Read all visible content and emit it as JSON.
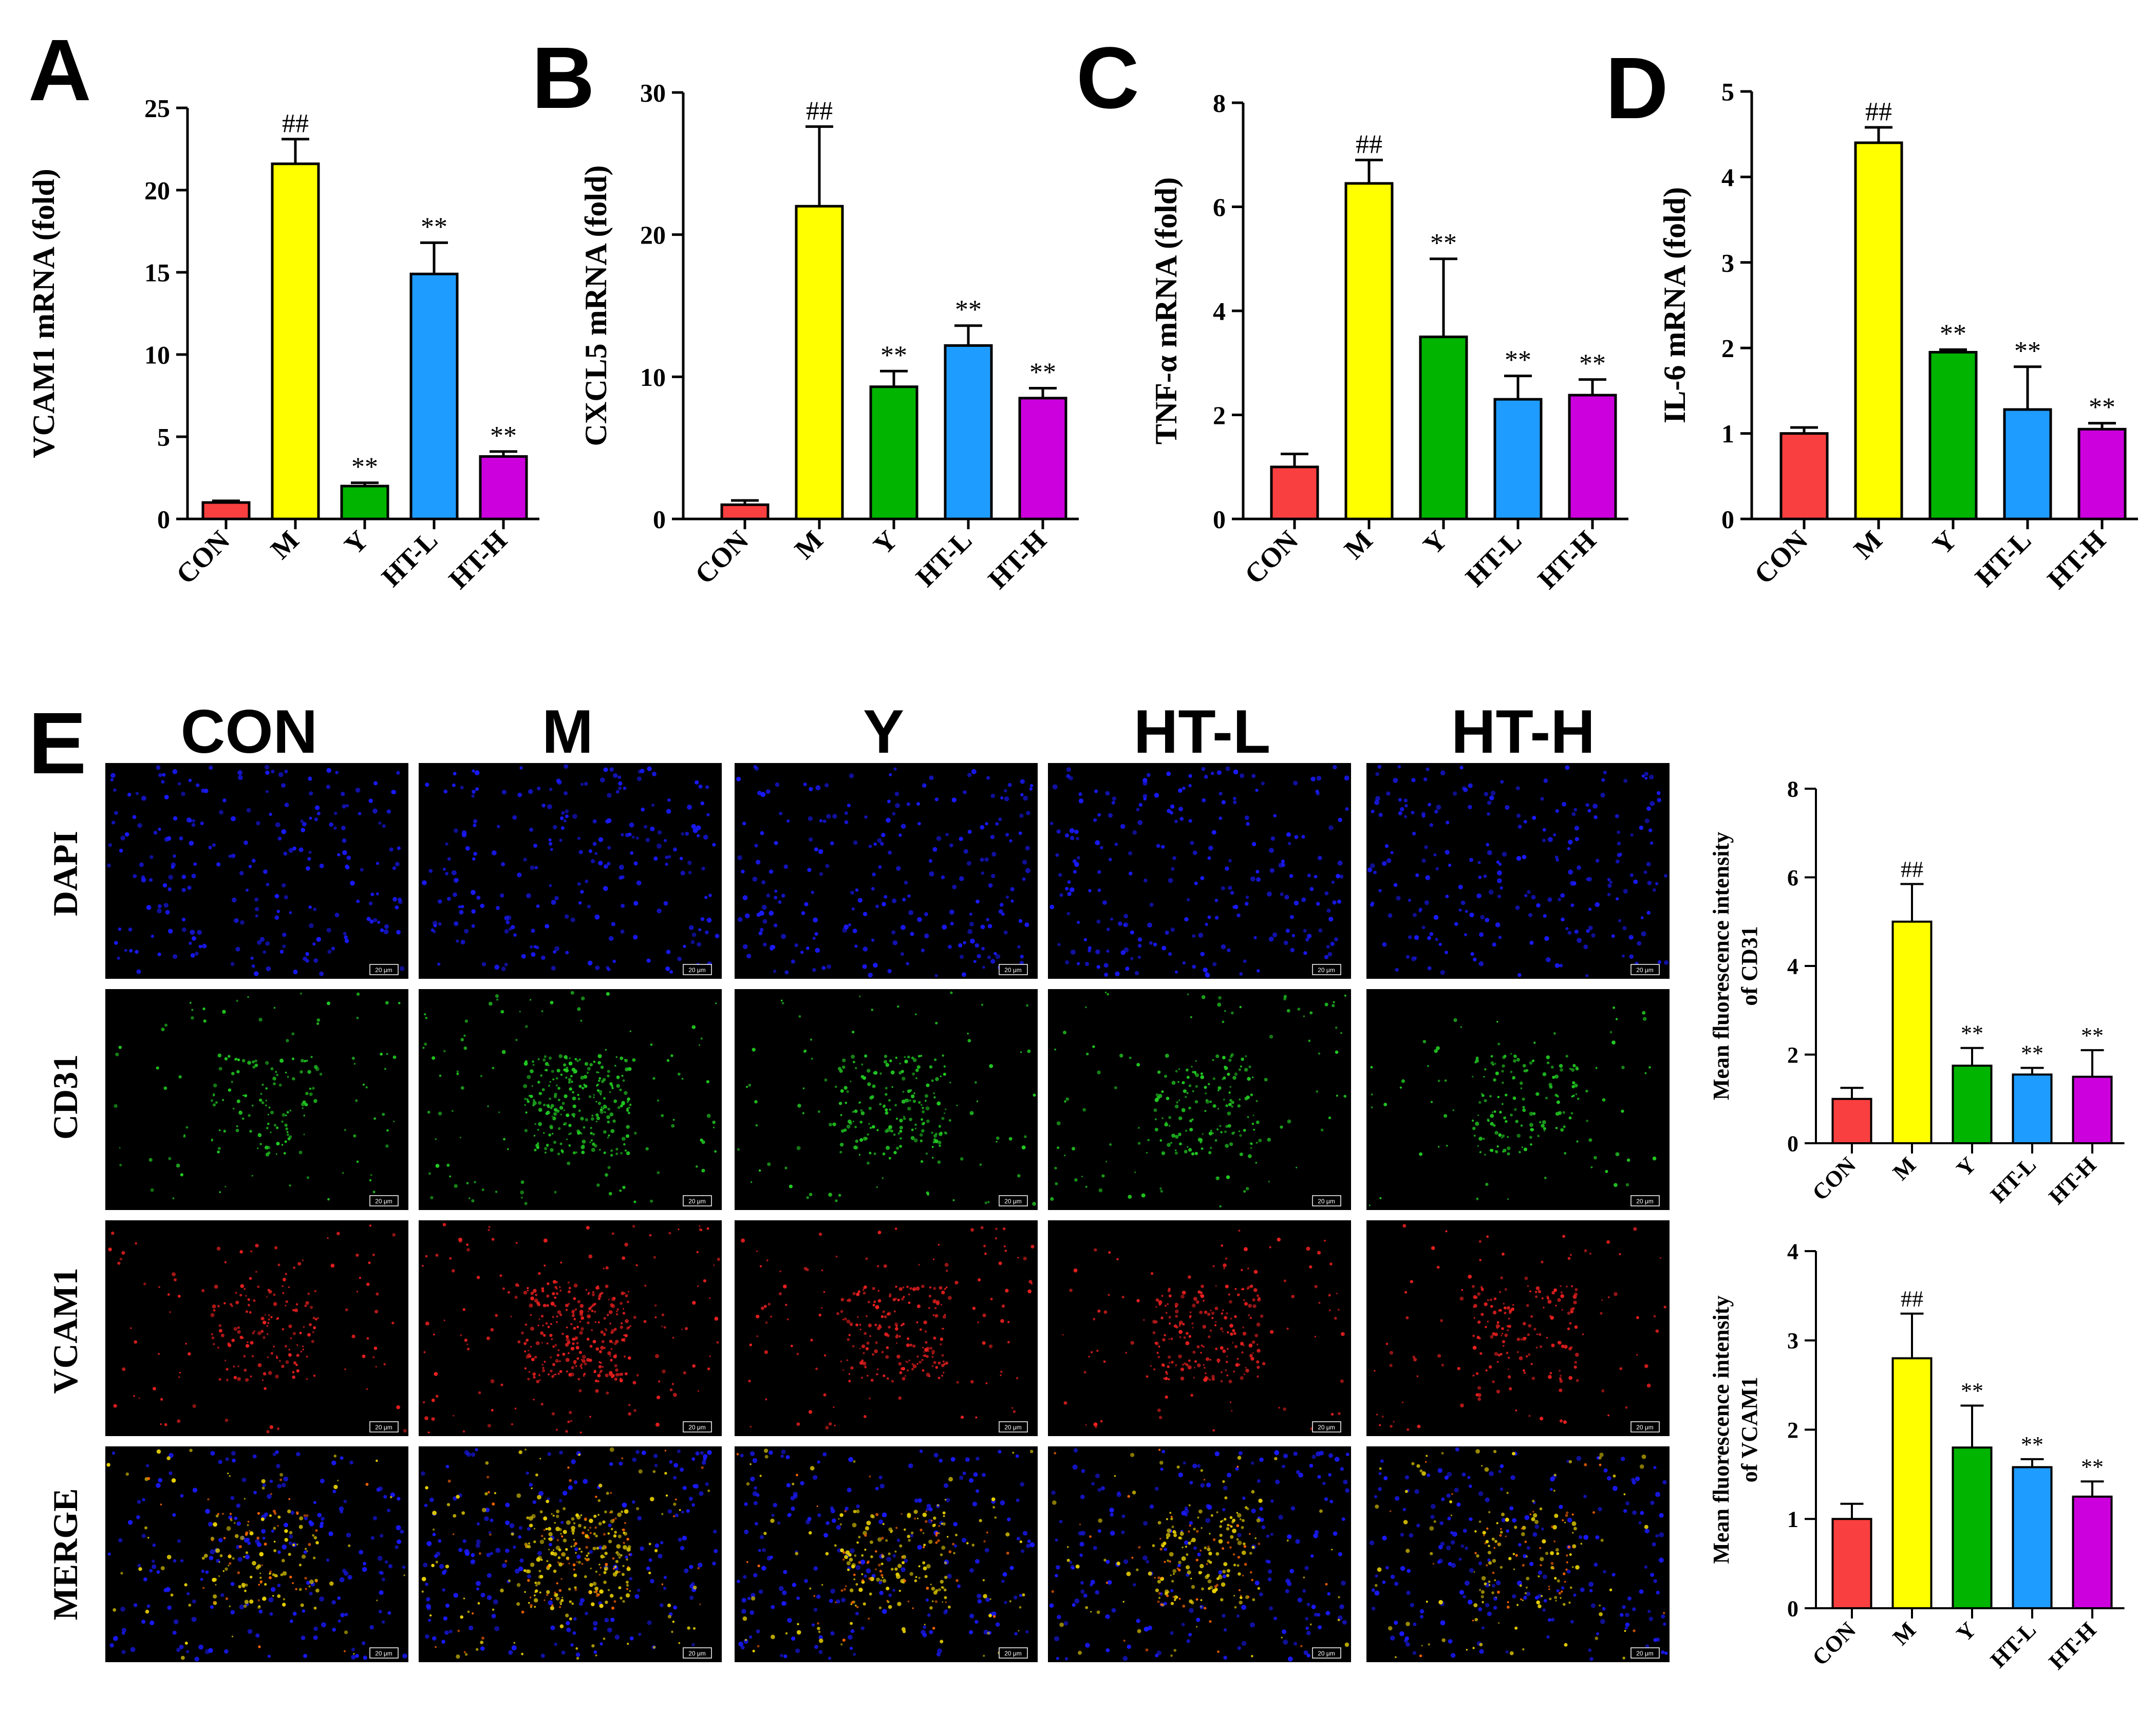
{
  "figure": {
    "panel_labels": [
      "A",
      "B",
      "C",
      "D",
      "E"
    ],
    "colors": {
      "CON": "#f93f3f",
      "M": "#ffff00",
      "Y": "#00b400",
      "HT-L": "#1e9cff",
      "HT-H": "#cc00dd"
    },
    "image_grid": {
      "column_headers": [
        "CON",
        "M",
        "Y",
        "HT-L",
        "HT-H"
      ],
      "row_labels": [
        "DAPI",
        "CD31",
        "VCAM1",
        "MERGE"
      ],
      "scale_bar_text": "20 μm"
    }
  },
  "chart_data": [
    {
      "id": "A",
      "type": "bar",
      "categories": [
        "CON",
        "M",
        "Y",
        "HT-L",
        "HT-H"
      ],
      "values": [
        1.0,
        21.6,
        2.0,
        14.9,
        3.8
      ],
      "errors": [
        0.1,
        1.5,
        0.2,
        1.9,
        0.3
      ],
      "annotations": [
        "",
        "##",
        "**",
        "**",
        "**"
      ],
      "ylabel": "VCAM1 mRNA (fold)",
      "ylim": [
        0,
        25
      ],
      "yticks": [
        0,
        5,
        10,
        15,
        20,
        25
      ],
      "ytick_labels": [
        "0",
        "5",
        "10",
        "15",
        "20",
        "25"
      ]
    },
    {
      "id": "B",
      "type": "bar",
      "categories": [
        "CON",
        "M",
        "Y",
        "HT-L",
        "HT-H"
      ],
      "values": [
        1.0,
        22.0,
        9.3,
        12.2,
        8.5
      ],
      "errors": [
        0.3,
        5.6,
        1.1,
        1.4,
        0.7
      ],
      "annotations": [
        "",
        "##",
        "**",
        "**",
        "**"
      ],
      "ylabel": "CXCL5 mRNA (fold)",
      "ylim": [
        0,
        30
      ],
      "yticks": [
        0,
        10,
        20,
        30
      ],
      "ytick_labels": [
        "0",
        "10",
        "20",
        "30"
      ]
    },
    {
      "id": "C",
      "type": "bar",
      "categories": [
        "CON",
        "M",
        "Y",
        "HT-L",
        "HT-H"
      ],
      "values": [
        1.0,
        6.45,
        3.5,
        2.3,
        2.38
      ],
      "errors": [
        0.25,
        0.45,
        1.5,
        0.45,
        0.3
      ],
      "annotations": [
        "",
        "##",
        "**",
        "**",
        "**"
      ],
      "ylabel": "TNF-α mRNA (fold)",
      "ylim": [
        0,
        8
      ],
      "yticks": [
        0,
        2,
        4,
        6,
        8
      ],
      "ytick_labels": [
        "0",
        "2",
        "4",
        "6",
        "8"
      ]
    },
    {
      "id": "D",
      "type": "bar",
      "categories": [
        "CON",
        "M",
        "Y",
        "HT-L",
        "HT-H"
      ],
      "values": [
        1.0,
        4.4,
        1.95,
        1.28,
        1.05
      ],
      "errors": [
        0.07,
        0.18,
        0.03,
        0.5,
        0.07
      ],
      "annotations": [
        "",
        "##",
        "**",
        "**",
        "**"
      ],
      "ylabel": "IL-6 mRNA (fold)",
      "ylim": [
        0,
        5
      ],
      "yticks": [
        0,
        1,
        2,
        3,
        4,
        5
      ],
      "ytick_labels": [
        "0",
        "1",
        "2",
        "3",
        "4",
        "5"
      ]
    },
    {
      "id": "E1",
      "type": "bar",
      "categories": [
        "CON",
        "M",
        "Y",
        "HT-L",
        "HT-H"
      ],
      "values": [
        1.0,
        5.0,
        1.75,
        1.55,
        1.5
      ],
      "errors": [
        0.25,
        0.85,
        0.4,
        0.15,
        0.6
      ],
      "annotations": [
        "",
        "##",
        "**",
        "**",
        "**"
      ],
      "ylabel_lines": [
        "Mean fluorescence intensity",
        "of  CD31"
      ],
      "ylim": [
        0,
        8
      ],
      "yticks": [
        0,
        2,
        4,
        6,
        8
      ],
      "ytick_labels": [
        "0",
        "2",
        "4",
        "6",
        "8"
      ]
    },
    {
      "id": "E2",
      "type": "bar",
      "categories": [
        "CON",
        "M",
        "Y",
        "HT-L",
        "HT-H"
      ],
      "values": [
        1.0,
        2.8,
        1.8,
        1.58,
        1.25
      ],
      "errors": [
        0.17,
        0.5,
        0.47,
        0.09,
        0.17
      ],
      "annotations": [
        "",
        "##",
        "**",
        "**",
        "**"
      ],
      "ylabel_lines": [
        "Mean fluorescence intensity",
        "of VCAM1"
      ],
      "ylim": [
        0,
        4
      ],
      "yticks": [
        0,
        1,
        2,
        3,
        4
      ],
      "ytick_labels": [
        "0",
        "1",
        "2",
        "3",
        "4"
      ]
    }
  ]
}
